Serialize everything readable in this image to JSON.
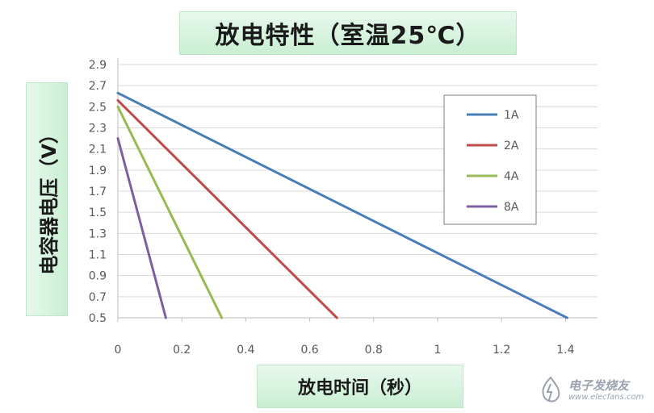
{
  "chart_data": {
    "type": "line",
    "title": "放电特性（室温25℃）",
    "xlabel": "放电时间（秒）",
    "ylabel": "电容器电压（V）",
    "xlim": [
      0,
      1.5
    ],
    "ylim": [
      0.5,
      2.9
    ],
    "x_ticks": [
      "0",
      "0.2",
      "0.4",
      "0.6",
      "0.8",
      "1",
      "1.2",
      "1.4"
    ],
    "y_ticks": [
      "0.5",
      "0.7",
      "0.9",
      "1.1",
      "1.3",
      "1.5",
      "1.7",
      "1.9",
      "2.1",
      "2.3",
      "2.5",
      "2.7",
      "2.9"
    ],
    "grid": "horizontal",
    "legend_position": "top-right",
    "series": [
      {
        "name": "1A",
        "color": "#4a7ebb",
        "points": [
          [
            0,
            2.63
          ],
          [
            1.405,
            0.5
          ]
        ]
      },
      {
        "name": "2A",
        "color": "#be4b48",
        "points": [
          [
            0,
            2.56
          ],
          [
            0.685,
            0.5
          ]
        ]
      },
      {
        "name": "4A",
        "color": "#98b954",
        "points": [
          [
            0,
            2.5
          ],
          [
            0.325,
            0.5
          ]
        ]
      },
      {
        "name": "8A",
        "color": "#7d60a0",
        "points": [
          [
            0,
            2.2
          ],
          [
            0.15,
            0.5
          ]
        ]
      }
    ]
  },
  "watermark": {
    "main": "电子发烧友",
    "sub": "www.elecfans.com"
  }
}
